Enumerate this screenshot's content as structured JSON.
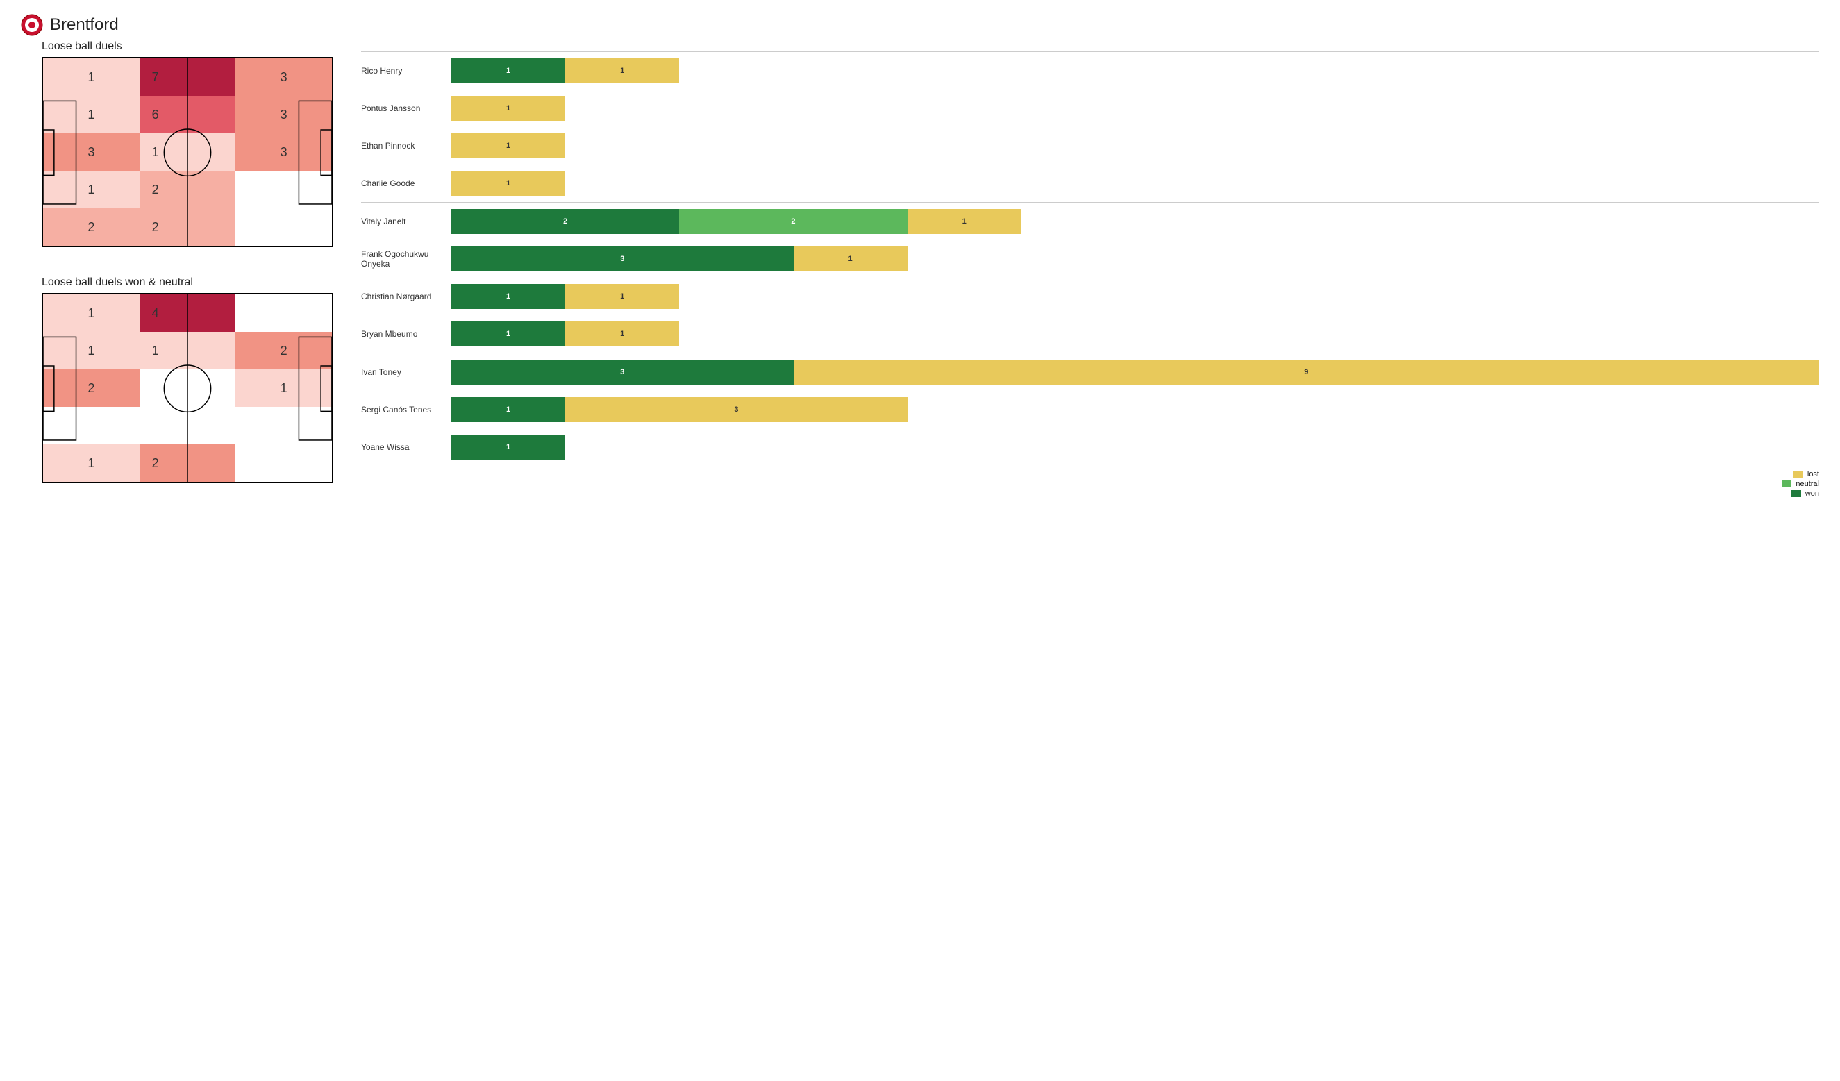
{
  "team": "Brentford",
  "colors": {
    "won": "#1e7a3c",
    "neutral": "#5cb85c",
    "lost": "#e8c95b",
    "heat": [
      "#ffffff",
      "#fbd5cf",
      "#f6afa3",
      "#f19384",
      "#e35a67",
      "#b21e3f"
    ],
    "pitch_border": "#000000",
    "divider": "#cccccc"
  },
  "pitches": {
    "duels": {
      "title": "Loose ball duels",
      "cells": [
        {
          "v": 1,
          "h": 1
        },
        {
          "v": 7,
          "h": 5
        },
        {
          "v": 3,
          "h": 3
        },
        {
          "v": 1,
          "h": 1
        },
        {
          "v": 6,
          "h": 4
        },
        {
          "v": 3,
          "h": 3
        },
        {
          "v": 3,
          "h": 3
        },
        {
          "v": 1,
          "h": 1
        },
        {
          "v": 3,
          "h": 3
        },
        {
          "v": 1,
          "h": 1
        },
        {
          "v": 2,
          "h": 2
        },
        {
          "v": null,
          "h": 0
        },
        {
          "v": 2,
          "h": 2
        },
        {
          "v": 2,
          "h": 2
        },
        {
          "v": null,
          "h": 0
        }
      ]
    },
    "won_neutral": {
      "title": "Loose ball duels won & neutral",
      "cells": [
        {
          "v": 1,
          "h": 1
        },
        {
          "v": 4,
          "h": 5
        },
        {
          "v": null,
          "h": 0
        },
        {
          "v": 1,
          "h": 1
        },
        {
          "v": 1,
          "h": 1
        },
        {
          "v": 2,
          "h": 3
        },
        {
          "v": 2,
          "h": 3
        },
        {
          "v": null,
          "h": 0
        },
        {
          "v": 1,
          "h": 1
        },
        {
          "v": null,
          "h": 0
        },
        {
          "v": null,
          "h": 0
        },
        {
          "v": null,
          "h": 0
        },
        {
          "v": 1,
          "h": 1
        },
        {
          "v": 2,
          "h": 3
        },
        {
          "v": null,
          "h": 0
        }
      ]
    }
  },
  "bar_scale_max": 12,
  "groups": [
    {
      "players": [
        {
          "name": "Rico Henry",
          "won": 1,
          "neutral": 0,
          "lost": 1
        },
        {
          "name": "Pontus Jansson",
          "won": 0,
          "neutral": 0,
          "lost": 1
        },
        {
          "name": "Ethan Pinnock",
          "won": 0,
          "neutral": 0,
          "lost": 1
        },
        {
          "name": "Charlie Goode",
          "won": 0,
          "neutral": 0,
          "lost": 1
        }
      ]
    },
    {
      "players": [
        {
          "name": "Vitaly Janelt",
          "won": 2,
          "neutral": 2,
          "lost": 1
        },
        {
          "name": "Frank Ogochukwu Onyeka",
          "won": 3,
          "neutral": 0,
          "lost": 1
        },
        {
          "name": "Christian Nørgaard",
          "won": 1,
          "neutral": 0,
          "lost": 1
        },
        {
          "name": "Bryan Mbeumo",
          "won": 1,
          "neutral": 0,
          "lost": 1
        }
      ]
    },
    {
      "players": [
        {
          "name": "Ivan Toney",
          "won": 3,
          "neutral": 0,
          "lost": 9
        },
        {
          "name": "Sergi Canós Tenes",
          "won": 1,
          "neutral": 0,
          "lost": 3
        },
        {
          "name": "Yoane Wissa",
          "won": 1,
          "neutral": 0,
          "lost": 0
        }
      ]
    }
  ],
  "legend": {
    "lost": "lost",
    "neutral": "neutral",
    "won": "won"
  }
}
